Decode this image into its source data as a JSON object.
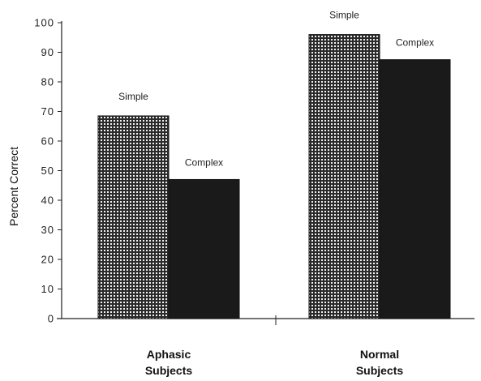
{
  "chart_data": {
    "type": "bar",
    "ylabel": "Percent Correct",
    "ylim": [
      0,
      100
    ],
    "yticks": [
      0,
      10,
      20,
      30,
      40,
      50,
      60,
      70,
      80,
      90,
      100
    ],
    "grid": false,
    "categories": [
      [
        "Aphasic",
        "Subjects"
      ],
      [
        "Normal",
        "Subjects"
      ]
    ],
    "series": [
      {
        "name": "Simple",
        "values": [
          68.5,
          96
        ]
      },
      {
        "name": "Complex",
        "values": [
          47,
          87.5
        ]
      }
    ],
    "bar_labels_shown": true
  },
  "colors": {
    "simple_fill_bg": "#2a2a2a",
    "simple_fill_grid": "#f2f2f2",
    "complex_fill": "#1a1a1a",
    "axis": "#222222"
  }
}
